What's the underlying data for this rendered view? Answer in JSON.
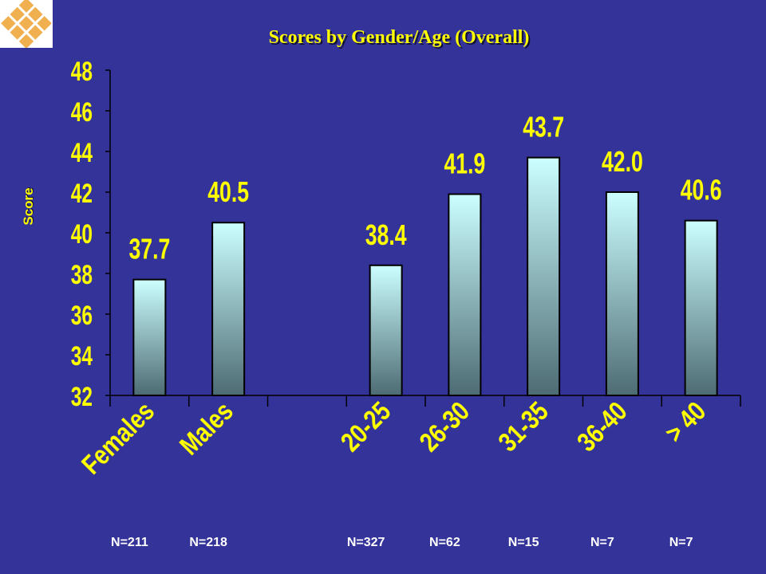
{
  "chart_data": {
    "type": "bar",
    "title": "Scores by Gender/Age (Overall)",
    "ylabel": "Score",
    "xlabel": "",
    "ylim": [
      32,
      48
    ],
    "yticks": [
      "32",
      "34",
      "36",
      "38",
      "40",
      "42",
      "44",
      "46",
      "48"
    ],
    "grid": false,
    "legend": "none",
    "categories": [
      "Females",
      "Males",
      "",
      "20-25",
      "26-30",
      "31-35",
      "36-40",
      "> 40"
    ],
    "values": [
      37.7,
      40.5,
      null,
      38.4,
      41.9,
      43.7,
      42.0,
      40.6
    ],
    "value_labels": [
      "37.7",
      "40.5",
      "",
      "38.4",
      "41.9",
      "43.7",
      "42.0",
      "40.6"
    ],
    "sample_sizes": [
      "N=211",
      "N=218",
      "",
      "N=327",
      "N=62",
      "N=15",
      "N=7",
      "N=7"
    ]
  },
  "colors": {
    "background": "#333399",
    "text": "#ffff00",
    "bar_top": "#ccffff",
    "bar_bottom": "#4d6b73",
    "axis": "#000000",
    "logo": "#f0b050"
  },
  "icons": {
    "logo": "diamond-lattice-logo-icon"
  }
}
